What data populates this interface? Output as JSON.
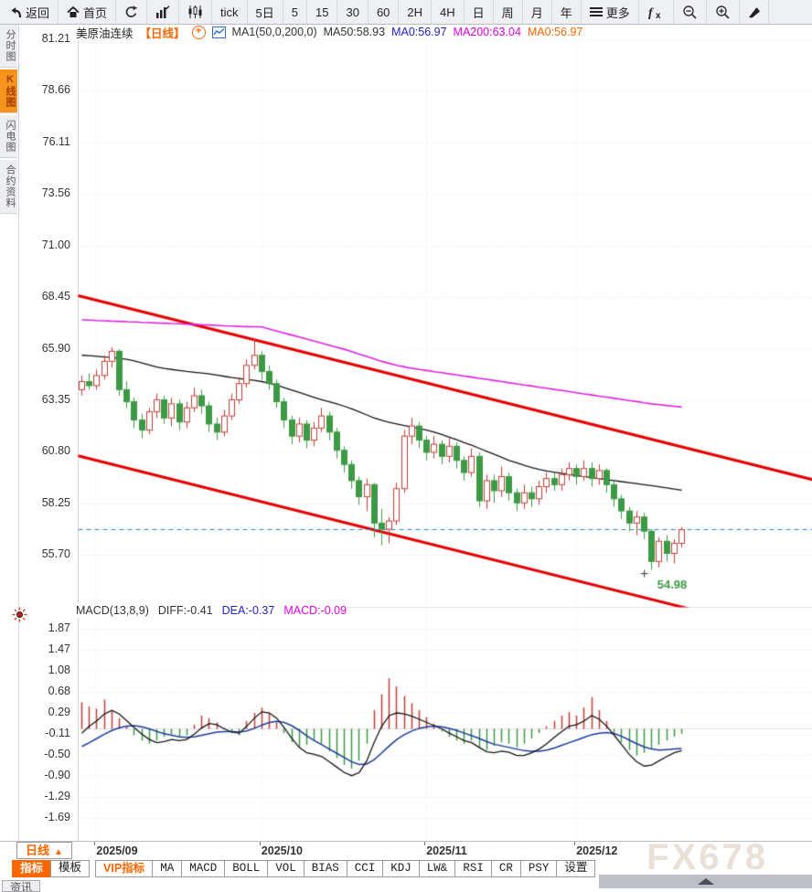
{
  "toolbar": {
    "items": [
      {
        "id": "back",
        "label": "返回",
        "icon": "back"
      },
      {
        "id": "home",
        "label": "首页",
        "icon": "home"
      },
      {
        "id": "refresh",
        "label": "",
        "icon": "refresh"
      },
      {
        "id": "chart-bars",
        "label": "",
        "icon": "bars"
      },
      {
        "id": "chart-candles",
        "label": "",
        "icon": "candles"
      },
      {
        "id": "tick",
        "label": "tick",
        "icon": ""
      },
      {
        "id": "5d",
        "label": "5日",
        "icon": ""
      },
      {
        "id": "m5",
        "label": "5",
        "icon": ""
      },
      {
        "id": "m15",
        "label": "15",
        "icon": ""
      },
      {
        "id": "m30",
        "label": "30",
        "icon": ""
      },
      {
        "id": "m60",
        "label": "60",
        "icon": ""
      },
      {
        "id": "h2",
        "label": "2H",
        "icon": ""
      },
      {
        "id": "h4",
        "label": "4H",
        "icon": ""
      },
      {
        "id": "day",
        "label": "日",
        "icon": ""
      },
      {
        "id": "week",
        "label": "周",
        "icon": ""
      },
      {
        "id": "month",
        "label": "月",
        "icon": ""
      },
      {
        "id": "year",
        "label": "年",
        "icon": ""
      },
      {
        "id": "more",
        "label": "更多",
        "icon": "menu"
      },
      {
        "id": "fx",
        "label": "",
        "icon": "fx"
      },
      {
        "id": "zoom-out",
        "label": "",
        "icon": "zoom-out"
      },
      {
        "id": "zoom-in",
        "label": "",
        "icon": "zoom-in"
      },
      {
        "id": "draw",
        "label": "",
        "icon": "pen"
      }
    ]
  },
  "sidebar": {
    "tabs": [
      {
        "label": "分时图",
        "active": false
      },
      {
        "label": "K线图",
        "active": true
      },
      {
        "label": "闪电图",
        "active": false
      },
      {
        "label": "合约资料",
        "active": false
      }
    ]
  },
  "price_header": {
    "title": "美原油连续",
    "period_tag": "【日线】",
    "ma_settings": "MA1(50,0,200,0)",
    "ma50": "MA50:58.93",
    "ma0_blue": "MA0:56.97",
    "ma200": "MA200:63.04",
    "ma0_orange": "MA0:56.97"
  },
  "macd_header": {
    "label": "MACD(13,8,9)",
    "diff": "DIFF:-0.41",
    "dea": "DEA:-0.37",
    "macd": "MACD:-0.09"
  },
  "footer": {
    "period_label": "日线",
    "period_arrow": "▲",
    "tabs": [
      {
        "label": "指标",
        "style": "sel"
      },
      {
        "label": "模板",
        "style": ""
      },
      {
        "label": "VIP指标",
        "style": "vip gap"
      },
      {
        "label": "MA",
        "style": ""
      },
      {
        "label": "MACD",
        "style": ""
      },
      {
        "label": "BOLL",
        "style": ""
      },
      {
        "label": "VOL",
        "style": ""
      },
      {
        "label": "BIAS",
        "style": ""
      },
      {
        "label": "CCI",
        "style": ""
      },
      {
        "label": "KDJ",
        "style": ""
      },
      {
        "label": "LW&",
        "style": ""
      },
      {
        "label": "RSI",
        "style": ""
      },
      {
        "label": "CR",
        "style": ""
      },
      {
        "label": "PSY",
        "style": ""
      },
      {
        "label": "设置",
        "style": ""
      }
    ],
    "partial_tab": "资讯"
  },
  "watermark": "FX678",
  "chart_data": {
    "type": "candlestick",
    "instrument": "美原油连续",
    "period": "日线",
    "price_axis_ticks": [
      "81.21",
      "78.66",
      "76.11",
      "73.56",
      "71.00",
      "68.45",
      "65.90",
      "63.35",
      "60.80",
      "58.25",
      "55.70"
    ],
    "macd_axis_ticks": [
      "1.87",
      "1.47",
      "1.08",
      "0.68",
      "0.29",
      "-0.11",
      "-0.50",
      "-0.90",
      "-1.29",
      "-1.69"
    ],
    "x_axis_labels": [
      {
        "label": "2025/09",
        "index": 2
      },
      {
        "label": "2025/10",
        "index": 24
      },
      {
        "label": "2025/11",
        "index": 46
      },
      {
        "label": "2025/12",
        "index": 66
      }
    ],
    "last_price": 56.97,
    "low_marker": {
      "index": 76,
      "price": 54.98,
      "label": "54.98"
    },
    "trend_channel": {
      "upper": {
        "price_at_left": 68.55,
        "price_at_right": 59.45
      },
      "lower": {
        "price_at_left": 60.63,
        "price_at_right": 51.53
      },
      "color": "#e60000"
    },
    "colors": {
      "up": "#c63c35",
      "down": "#3d9a44",
      "ma50": "#141414",
      "ma200": "#e021e0",
      "diff": "#141414",
      "dea": "#1b3c9e",
      "last_price_line": "#1c86e8",
      "grid": "#e4e6ec"
    },
    "candles_ohlc": [
      [
        63.9,
        64.6,
        63.6,
        64.3
      ],
      [
        64.3,
        64.7,
        63.9,
        64.1
      ],
      [
        64.1,
        64.9,
        63.9,
        64.6
      ],
      [
        64.6,
        65.6,
        64.4,
        65.3
      ],
      [
        65.3,
        66.0,
        65.0,
        65.8
      ],
      [
        65.8,
        65.9,
        63.6,
        63.9
      ],
      [
        63.9,
        64.3,
        63.0,
        63.3
      ],
      [
        63.3,
        63.5,
        62.0,
        62.4
      ],
      [
        62.4,
        62.7,
        61.5,
        61.9
      ],
      [
        61.9,
        63.0,
        61.7,
        62.8
      ],
      [
        62.8,
        63.7,
        62.5,
        63.4
      ],
      [
        63.4,
        63.6,
        62.2,
        62.5
      ],
      [
        62.5,
        63.5,
        62.1,
        63.2
      ],
      [
        63.2,
        63.4,
        61.9,
        62.3
      ],
      [
        62.3,
        63.3,
        62.0,
        63.0
      ],
      [
        63.0,
        64.0,
        62.8,
        63.6
      ],
      [
        63.6,
        63.9,
        62.7,
        63.1
      ],
      [
        63.1,
        63.3,
        61.8,
        62.2
      ],
      [
        62.2,
        62.5,
        61.4,
        61.8
      ],
      [
        61.8,
        62.9,
        61.6,
        62.6
      ],
      [
        62.6,
        63.7,
        62.4,
        63.4
      ],
      [
        63.4,
        64.5,
        63.2,
        64.2
      ],
      [
        64.2,
        65.4,
        64.0,
        65.1
      ],
      [
        65.1,
        66.4,
        64.9,
        65.6
      ],
      [
        65.6,
        65.8,
        64.4,
        64.8
      ],
      [
        64.8,
        65.1,
        63.9,
        64.2
      ],
      [
        64.2,
        64.4,
        63.0,
        63.3
      ],
      [
        63.3,
        63.5,
        62.0,
        62.4
      ],
      [
        62.4,
        62.6,
        61.2,
        61.6
      ],
      [
        61.6,
        62.5,
        61.3,
        62.2
      ],
      [
        62.2,
        62.4,
        61.0,
        61.4
      ],
      [
        61.4,
        62.3,
        61.1,
        62.0
      ],
      [
        62.0,
        63.0,
        61.8,
        62.6
      ],
      [
        62.6,
        62.8,
        61.4,
        61.8
      ],
      [
        61.8,
        62.0,
        60.5,
        60.9
      ],
      [
        60.9,
        61.1,
        59.8,
        60.2
      ],
      [
        60.2,
        60.4,
        59.0,
        59.4
      ],
      [
        59.4,
        59.6,
        58.2,
        58.6
      ],
      [
        58.6,
        59.5,
        57.9,
        59.2
      ],
      [
        59.2,
        59.3,
        56.6,
        57.3
      ],
      [
        57.3,
        58.0,
        56.2,
        57.0
      ],
      [
        57.0,
        57.6,
        56.3,
        57.4
      ],
      [
        57.4,
        59.3,
        57.2,
        59.0
      ],
      [
        59.0,
        61.9,
        58.8,
        61.6
      ],
      [
        61.6,
        62.5,
        61.2,
        62.1
      ],
      [
        62.1,
        62.3,
        61.0,
        61.4
      ],
      [
        61.4,
        61.6,
        60.4,
        60.8
      ],
      [
        60.8,
        61.6,
        60.5,
        61.2
      ],
      [
        61.2,
        61.4,
        60.2,
        60.6
      ],
      [
        60.6,
        61.5,
        60.3,
        61.1
      ],
      [
        61.1,
        61.3,
        60.0,
        60.4
      ],
      [
        60.4,
        60.6,
        59.4,
        59.8
      ],
      [
        59.8,
        61.0,
        59.6,
        60.6
      ],
      [
        60.6,
        60.8,
        58.1,
        58.4
      ],
      [
        58.4,
        59.7,
        58.0,
        59.4
      ],
      [
        59.4,
        59.7,
        58.3,
        58.9
      ],
      [
        58.9,
        60.1,
        58.6,
        59.6
      ],
      [
        59.6,
        59.8,
        58.4,
        58.8
      ],
      [
        58.8,
        59.0,
        57.9,
        58.3
      ],
      [
        58.3,
        59.2,
        58.0,
        58.8
      ],
      [
        58.8,
        59.1,
        58.1,
        58.5
      ],
      [
        58.5,
        59.4,
        58.2,
        59.1
      ],
      [
        59.1,
        59.8,
        58.8,
        59.5
      ],
      [
        59.5,
        59.8,
        58.9,
        59.2
      ],
      [
        59.2,
        60.0,
        58.9,
        59.7
      ],
      [
        59.7,
        60.3,
        59.4,
        60.0
      ],
      [
        60.0,
        60.2,
        59.2,
        59.6
      ],
      [
        59.6,
        60.4,
        59.4,
        60.0
      ],
      [
        60.0,
        60.3,
        59.1,
        59.5
      ],
      [
        59.5,
        60.2,
        59.2,
        59.9
      ],
      [
        59.9,
        60.0,
        58.8,
        59.2
      ],
      [
        59.2,
        59.4,
        58.1,
        58.5
      ],
      [
        58.5,
        58.7,
        57.5,
        57.9
      ],
      [
        57.9,
        58.1,
        56.9,
        57.3
      ],
      [
        57.3,
        57.9,
        56.7,
        57.6
      ],
      [
        57.6,
        57.8,
        56.5,
        56.9
      ],
      [
        56.9,
        57.0,
        54.98,
        55.4
      ],
      [
        55.4,
        56.6,
        55.1,
        56.4
      ],
      [
        56.4,
        56.7,
        55.4,
        55.8
      ],
      [
        55.8,
        56.5,
        55.3,
        56.3
      ],
      [
        56.3,
        57.1,
        56.1,
        56.97
      ]
    ],
    "ma50": [
      65.6,
      65.58,
      65.55,
      65.52,
      65.5,
      65.45,
      65.4,
      65.32,
      65.22,
      65.12,
      65.02,
      64.95,
      64.9,
      64.85,
      64.8,
      64.76,
      64.72,
      64.68,
      64.62,
      64.56,
      64.5,
      64.45,
      64.4,
      64.36,
      64.3,
      64.22,
      64.12,
      64.0,
      63.88,
      63.76,
      63.64,
      63.52,
      63.4,
      63.3,
      63.2,
      63.08,
      62.95,
      62.8,
      62.65,
      62.5,
      62.38,
      62.28,
      62.2,
      62.12,
      62.05,
      61.98,
      61.9,
      61.8,
      61.68,
      61.55,
      61.42,
      61.28,
      61.15,
      61.0,
      60.85,
      60.7,
      60.55,
      60.4,
      60.28,
      60.16,
      60.05,
      59.95,
      59.88,
      59.82,
      59.76,
      59.7,
      59.65,
      59.6,
      59.55,
      59.5,
      59.45,
      59.4,
      59.35,
      59.3,
      59.25,
      59.2,
      59.15,
      59.1,
      59.04,
      58.98,
      58.93
    ],
    "ma200": [
      67.35,
      67.34,
      67.32,
      67.31,
      67.29,
      67.28,
      67.26,
      67.25,
      67.23,
      67.22,
      67.2,
      67.19,
      67.17,
      67.16,
      67.14,
      67.13,
      67.11,
      67.1,
      67.08,
      67.06,
      67.05,
      67.03,
      67.02,
      67.01,
      67.0,
      66.9,
      66.8,
      66.7,
      66.6,
      66.5,
      66.4,
      66.3,
      66.2,
      66.1,
      66.0,
      65.9,
      65.78,
      65.66,
      65.54,
      65.42,
      65.3,
      65.2,
      65.1,
      65.03,
      64.96,
      64.9,
      64.85,
      64.79,
      64.74,
      64.68,
      64.63,
      64.57,
      64.52,
      64.46,
      64.41,
      64.35,
      64.3,
      64.24,
      64.19,
      64.13,
      64.08,
      64.02,
      63.97,
      63.91,
      63.86,
      63.8,
      63.75,
      63.69,
      63.64,
      63.58,
      63.53,
      63.47,
      63.42,
      63.36,
      63.31,
      63.25,
      63.2,
      63.16,
      63.12,
      63.08,
      63.04
    ],
    "macd": {
      "hist": [
        0.5,
        0.42,
        0.38,
        0.55,
        0.35,
        0.2,
        0.05,
        -0.12,
        -0.22,
        -0.28,
        -0.22,
        -0.15,
        -0.1,
        -0.15,
        -0.12,
        0.08,
        0.25,
        0.2,
        0.12,
        0.02,
        -0.08,
        -0.12,
        0.15,
        0.3,
        0.4,
        0.3,
        0.12,
        -0.08,
        -0.25,
        -0.35,
        -0.3,
        -0.22,
        -0.28,
        -0.42,
        -0.55,
        -0.68,
        -0.75,
        -0.6,
        -0.28,
        0.35,
        0.65,
        0.95,
        0.8,
        0.62,
        0.48,
        0.35,
        0.22,
        0.1,
        -0.05,
        -0.15,
        -0.22,
        -0.28,
        -0.22,
        -0.35,
        -0.4,
        -0.32,
        -0.25,
        -0.28,
        -0.35,
        -0.28,
        -0.18,
        -0.08,
        0.05,
        0.15,
        0.25,
        0.32,
        0.25,
        0.4,
        0.6,
        0.35,
        0.15,
        -0.1,
        -0.25,
        -0.4,
        -0.5,
        -0.45,
        -0.38,
        -0.3,
        -0.22,
        -0.15,
        -0.09
      ],
      "diff": [
        -0.08,
        0.05,
        0.15,
        0.28,
        0.35,
        0.28,
        0.15,
        0.02,
        -0.1,
        -0.2,
        -0.26,
        -0.24,
        -0.2,
        -0.22,
        -0.2,
        -0.1,
        0.02,
        0.1,
        0.08,
        0.0,
        -0.06,
        -0.08,
        0.05,
        0.2,
        0.32,
        0.3,
        0.2,
        0.02,
        -0.18,
        -0.35,
        -0.45,
        -0.48,
        -0.52,
        -0.62,
        -0.72,
        -0.82,
        -0.88,
        -0.82,
        -0.6,
        -0.25,
        0.05,
        0.25,
        0.3,
        0.28,
        0.24,
        0.18,
        0.12,
        0.06,
        0.0,
        -0.08,
        -0.15,
        -0.22,
        -0.26,
        -0.35,
        -0.43,
        -0.45,
        -0.42,
        -0.44,
        -0.5,
        -0.5,
        -0.45,
        -0.38,
        -0.28,
        -0.16,
        -0.05,
        0.05,
        0.08,
        0.15,
        0.25,
        0.18,
        0.05,
        -0.12,
        -0.3,
        -0.48,
        -0.62,
        -0.7,
        -0.68,
        -0.6,
        -0.52,
        -0.45,
        -0.41
      ],
      "dea": [
        -0.33,
        -0.26,
        -0.18,
        -0.1,
        -0.03,
        0.02,
        0.05,
        0.06,
        0.04,
        0.0,
        -0.05,
        -0.09,
        -0.12,
        -0.15,
        -0.16,
        -0.15,
        -0.12,
        -0.09,
        -0.06,
        -0.05,
        -0.05,
        -0.06,
        -0.04,
        0.01,
        0.07,
        0.12,
        0.14,
        0.12,
        0.06,
        -0.03,
        -0.13,
        -0.22,
        -0.3,
        -0.38,
        -0.46,
        -0.54,
        -0.62,
        -0.67,
        -0.66,
        -0.58,
        -0.45,
        -0.32,
        -0.2,
        -0.11,
        -0.04,
        0.01,
        0.04,
        0.05,
        0.04,
        0.01,
        -0.03,
        -0.08,
        -0.13,
        -0.18,
        -0.24,
        -0.29,
        -0.32,
        -0.35,
        -0.38,
        -0.41,
        -0.42,
        -0.42,
        -0.4,
        -0.36,
        -0.31,
        -0.26,
        -0.21,
        -0.16,
        -0.11,
        -0.08,
        -0.07,
        -0.09,
        -0.14,
        -0.21,
        -0.28,
        -0.34,
        -0.38,
        -0.4,
        -0.39,
        -0.38,
        -0.37
      ]
    }
  }
}
